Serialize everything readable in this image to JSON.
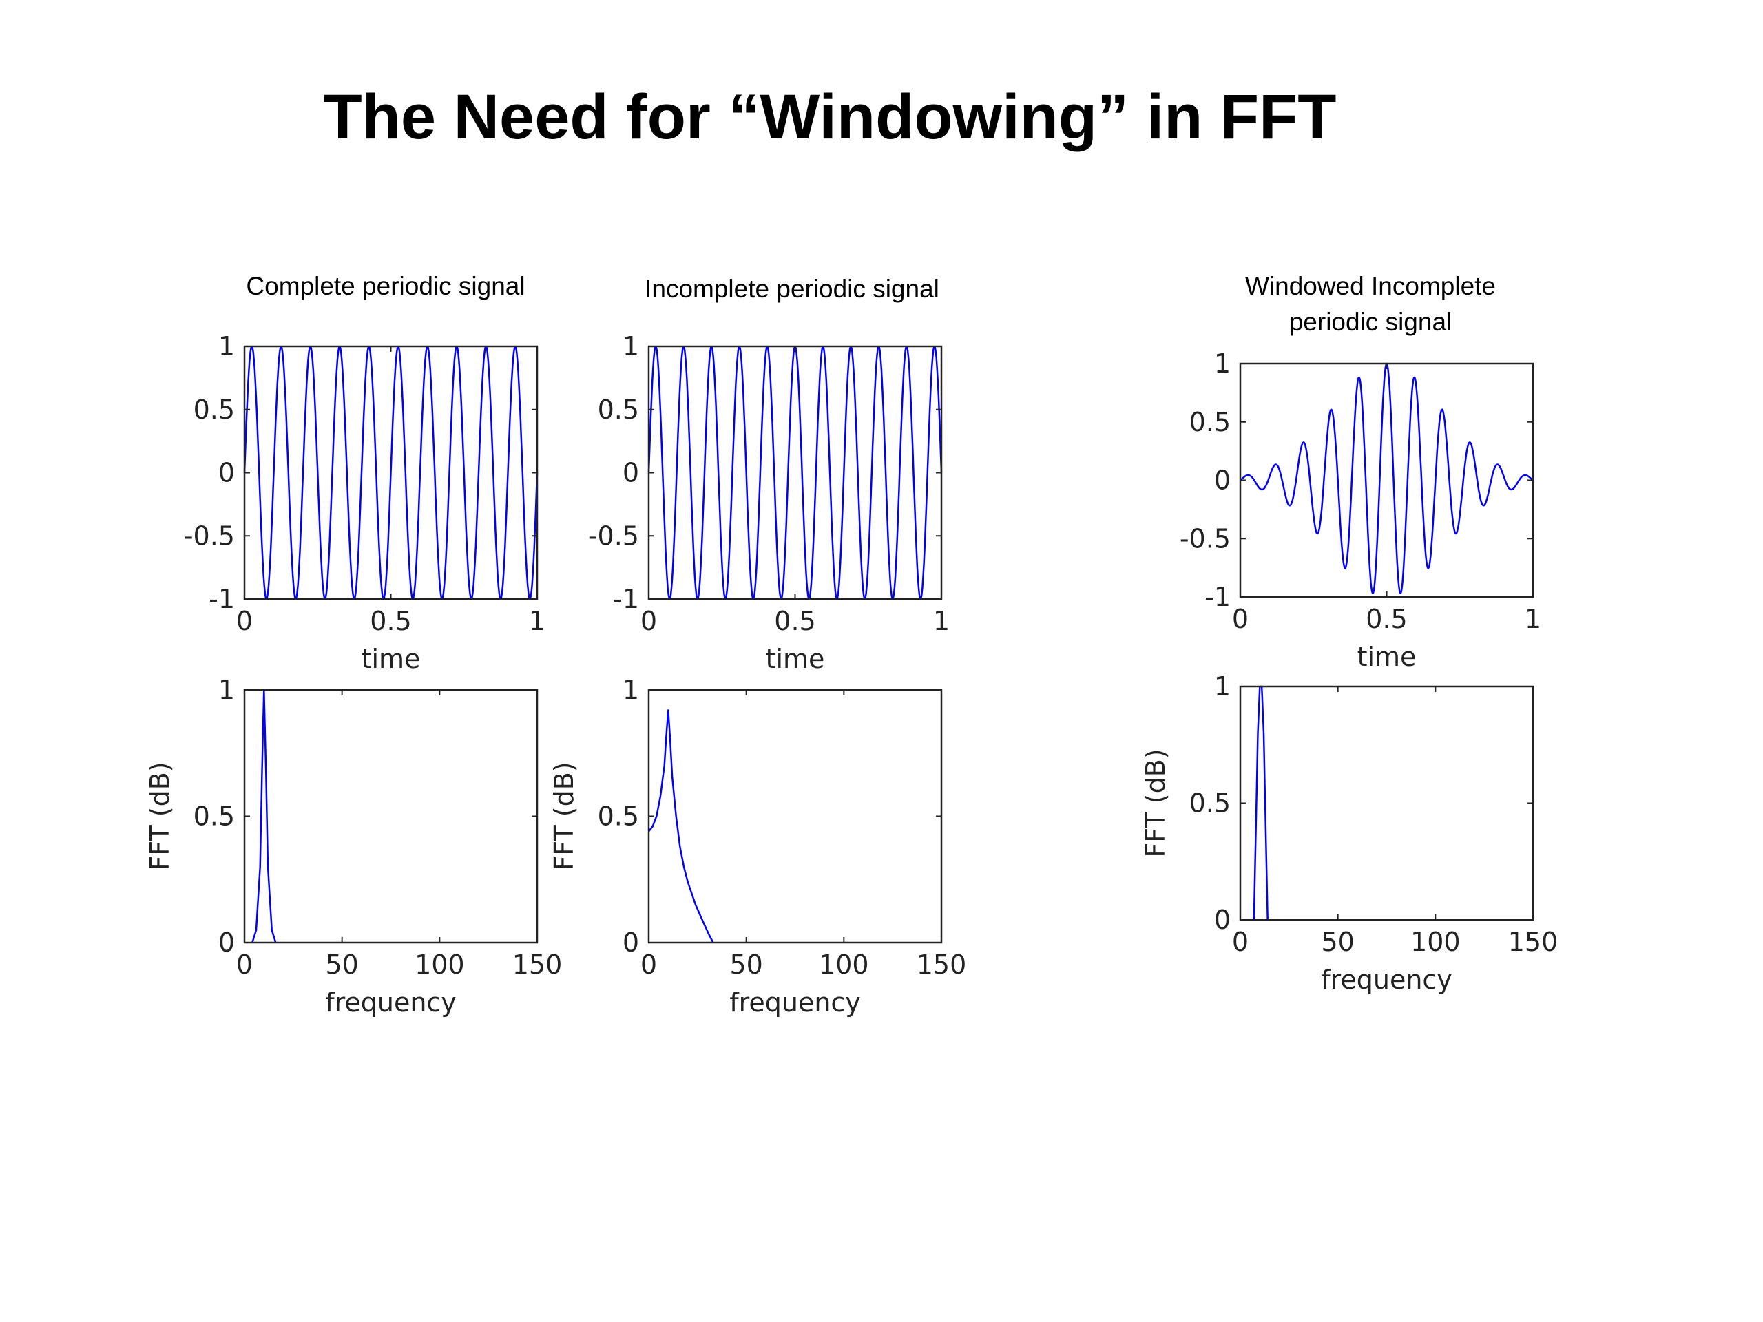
{
  "slide": {
    "title": "The Need for “Windowing” in FFT"
  },
  "captions": {
    "complete": "Complete periodic signal",
    "incomplete": "Incomplete periodic signal",
    "windowed": "Windowed Incomplete\nperiodic signal"
  },
  "colors": {
    "series": "#0000ff",
    "axes": "#222222"
  },
  "chart_data": [
    {
      "id": "complete-time",
      "type": "line",
      "xlabel": "time",
      "ylabel": "",
      "xlim": [
        0,
        1
      ],
      "ylim": [
        -1,
        1
      ],
      "xticks": [
        0,
        0.5,
        1
      ],
      "yticks": [
        -1,
        -0.5,
        0,
        0.5,
        1
      ],
      "xticklabels": [
        "0",
        "0.5",
        "1"
      ],
      "yticklabels": [
        "-1",
        "-0.5",
        "0",
        "0.5",
        "1"
      ],
      "signal": {
        "kind": "sine",
        "frequency": 10,
        "amplitude": 1,
        "samples": 400
      }
    },
    {
      "id": "complete-fft",
      "type": "line",
      "xlabel": "frequency",
      "ylabel": "FFT (dB)",
      "xlim": [
        0,
        150
      ],
      "ylim": [
        0,
        1
      ],
      "xticks": [
        0,
        50,
        100,
        150
      ],
      "yticks": [
        0,
        0.5,
        1
      ],
      "xticklabels": [
        "0",
        "50",
        "100",
        "150"
      ],
      "yticklabels": [
        "0",
        "0.5",
        "1"
      ],
      "x": [
        4,
        6,
        8,
        9,
        10,
        11,
        12,
        14,
        16
      ],
      "y": [
        0,
        0.05,
        0.3,
        0.68,
        1,
        0.68,
        0.3,
        0.05,
        0
      ]
    },
    {
      "id": "incomplete-time",
      "type": "line",
      "xlabel": "time",
      "ylabel": "",
      "xlim": [
        0,
        1
      ],
      "ylim": [
        -1,
        1
      ],
      "xticks": [
        0,
        0.5,
        1
      ],
      "yticks": [
        -1,
        -0.5,
        0,
        0.5,
        1
      ],
      "xticklabels": [
        "0",
        "0.5",
        "1"
      ],
      "yticklabels": [
        "-1",
        "-0.5",
        "0",
        "0.5",
        "1"
      ],
      "signal": {
        "kind": "sine",
        "frequency": 10.5,
        "amplitude": 1,
        "samples": 400
      }
    },
    {
      "id": "incomplete-fft",
      "type": "line",
      "xlabel": "frequency",
      "ylabel": "FFT (dB)",
      "xlim": [
        0,
        150
      ],
      "ylim": [
        0,
        1
      ],
      "xticks": [
        0,
        50,
        100,
        150
      ],
      "yticks": [
        0,
        0.5,
        1
      ],
      "xticklabels": [
        "0",
        "50",
        "100",
        "150"
      ],
      "yticklabels": [
        "0",
        "0.5",
        "1"
      ],
      "x": [
        0,
        2,
        4,
        6,
        8,
        9,
        10,
        11,
        12,
        14,
        16,
        18,
        20,
        24,
        28,
        31,
        33
      ],
      "y": [
        0.44,
        0.46,
        0.5,
        0.58,
        0.7,
        0.82,
        0.92,
        0.8,
        0.66,
        0.5,
        0.38,
        0.3,
        0.24,
        0.15,
        0.08,
        0.03,
        0
      ]
    },
    {
      "id": "windowed-time",
      "type": "line",
      "xlabel": "time",
      "ylabel": "",
      "xlim": [
        0,
        1
      ],
      "ylim": [
        -1,
        1
      ],
      "xticks": [
        0,
        0.5,
        1
      ],
      "yticks": [
        -1,
        -0.5,
        0,
        0.5,
        1
      ],
      "xticklabels": [
        "0",
        "0.5",
        "1"
      ],
      "yticklabels": [
        "-1",
        "-0.5",
        "0",
        "0.5",
        "1"
      ],
      "signal": {
        "kind": "windowed-sine",
        "frequency": 10.5,
        "amplitude": 1,
        "window_width": 0.19,
        "samples": 500
      }
    },
    {
      "id": "windowed-fft",
      "type": "line",
      "xlabel": "frequency",
      "ylabel": "FFT (dB)",
      "xlim": [
        0,
        150
      ],
      "ylim": [
        0,
        1
      ],
      "xticks": [
        0,
        50,
        100,
        150
      ],
      "yticks": [
        0,
        0.5,
        1
      ],
      "xticklabels": [
        "0",
        "50",
        "100",
        "150"
      ],
      "yticklabels": [
        "0",
        "0.5",
        "1"
      ],
      "x": [
        7,
        8,
        9,
        10,
        11,
        12,
        13,
        14
      ],
      "y": [
        0,
        0.4,
        0.8,
        1,
        1,
        0.8,
        0.4,
        0
      ]
    }
  ]
}
